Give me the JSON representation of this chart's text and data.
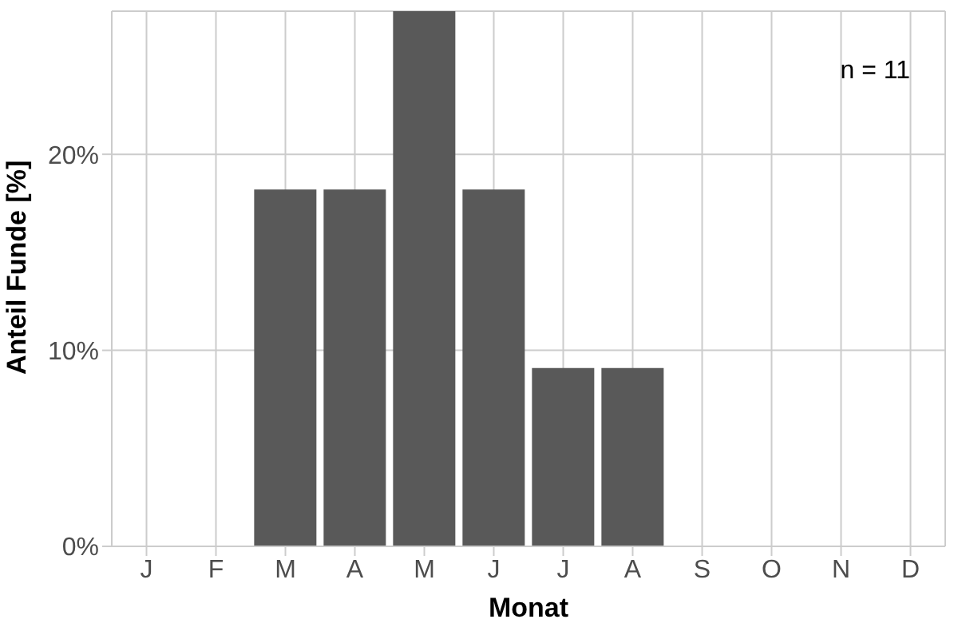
{
  "chart_data": {
    "type": "bar",
    "xlabel": "Monat",
    "ylabel": "Anteil Funde [%]",
    "categories": [
      "J",
      "F",
      "M",
      "A",
      "M",
      "J",
      "J",
      "A",
      "S",
      "O",
      "N",
      "D"
    ],
    "values": [
      0,
      0,
      18.2,
      18.2,
      27.3,
      18.2,
      9.1,
      9.1,
      0,
      0,
      0,
      0
    ],
    "color": "#595959",
    "ylim": [
      0,
      27.3
    ],
    "yticks": [
      {
        "value": 0,
        "label": "0%"
      },
      {
        "value": 10,
        "label": "10%"
      },
      {
        "value": 20,
        "label": "20%"
      }
    ],
    "grid": true,
    "annotations": [
      "n = 11"
    ]
  }
}
